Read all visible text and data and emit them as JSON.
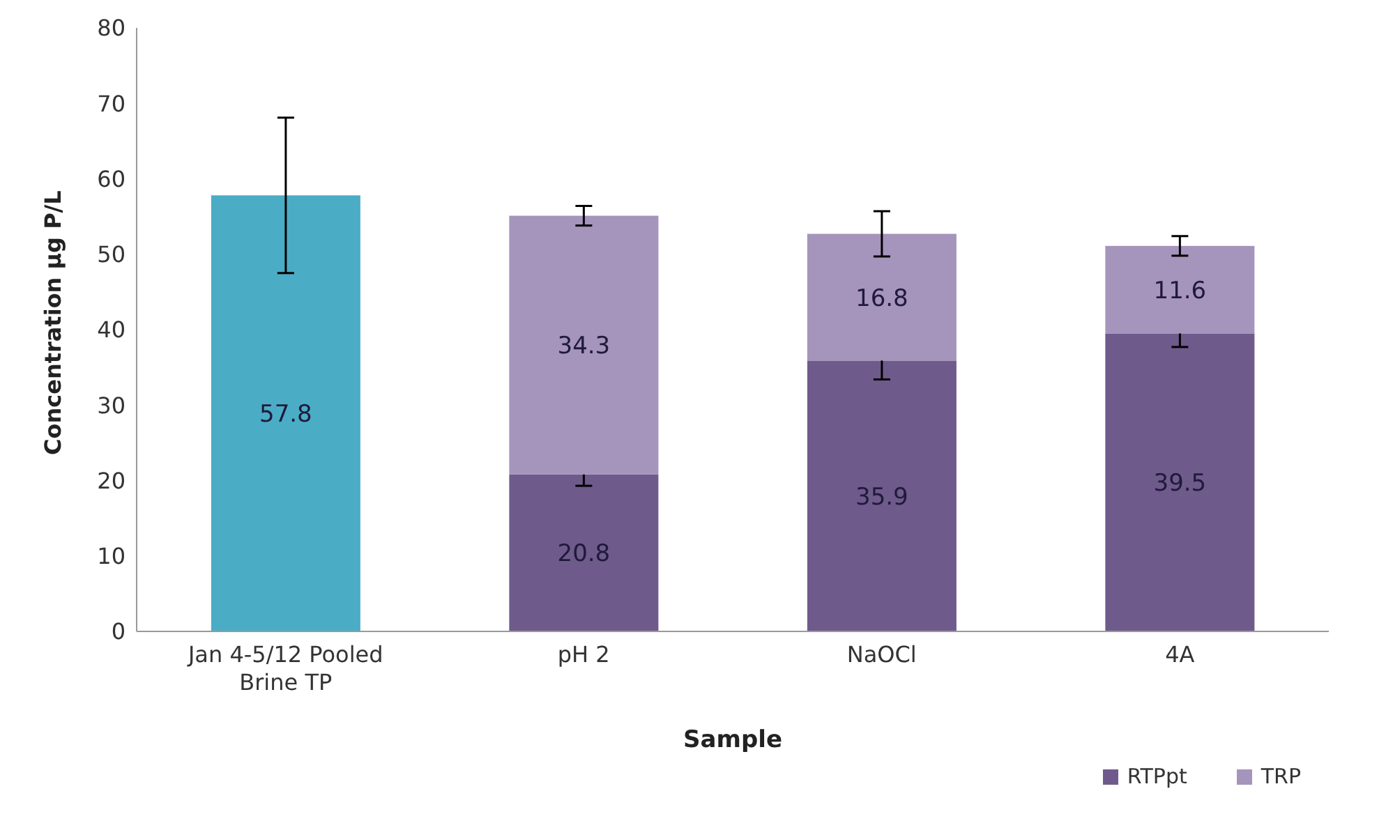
{
  "chart_data": {
    "type": "bar",
    "stacked": true,
    "xlabel": "Sample",
    "ylabel": "Concentration µg P/L",
    "categories": [
      "Jan 4-5/12 Pooled Brine TP",
      "pH 2",
      "NaOCl",
      "4A"
    ],
    "series": [
      {
        "color": "#4bacc6",
        "values": [
          57.8,
          null,
          null,
          null
        ],
        "errors": [
          10.3,
          null,
          null,
          null
        ]
      },
      {
        "name": "RTPpt",
        "color": "#6f5a8c",
        "values": [
          null,
          20.8,
          35.9,
          39.5
        ],
        "errors": [
          null,
          1.5,
          2.5,
          1.8
        ]
      },
      {
        "name": "TRP",
        "color": "#a594bc",
        "values": [
          null,
          34.3,
          16.8,
          11.6
        ],
        "errors": [
          null,
          1.3,
          3,
          1.3
        ]
      }
    ],
    "ylim": [
      0,
      80
    ],
    "yticks": [
      0,
      10,
      20,
      30,
      40,
      50,
      60,
      70,
      80
    ],
    "grid": false,
    "legend": "bottom right",
    "data_labels": true
  }
}
